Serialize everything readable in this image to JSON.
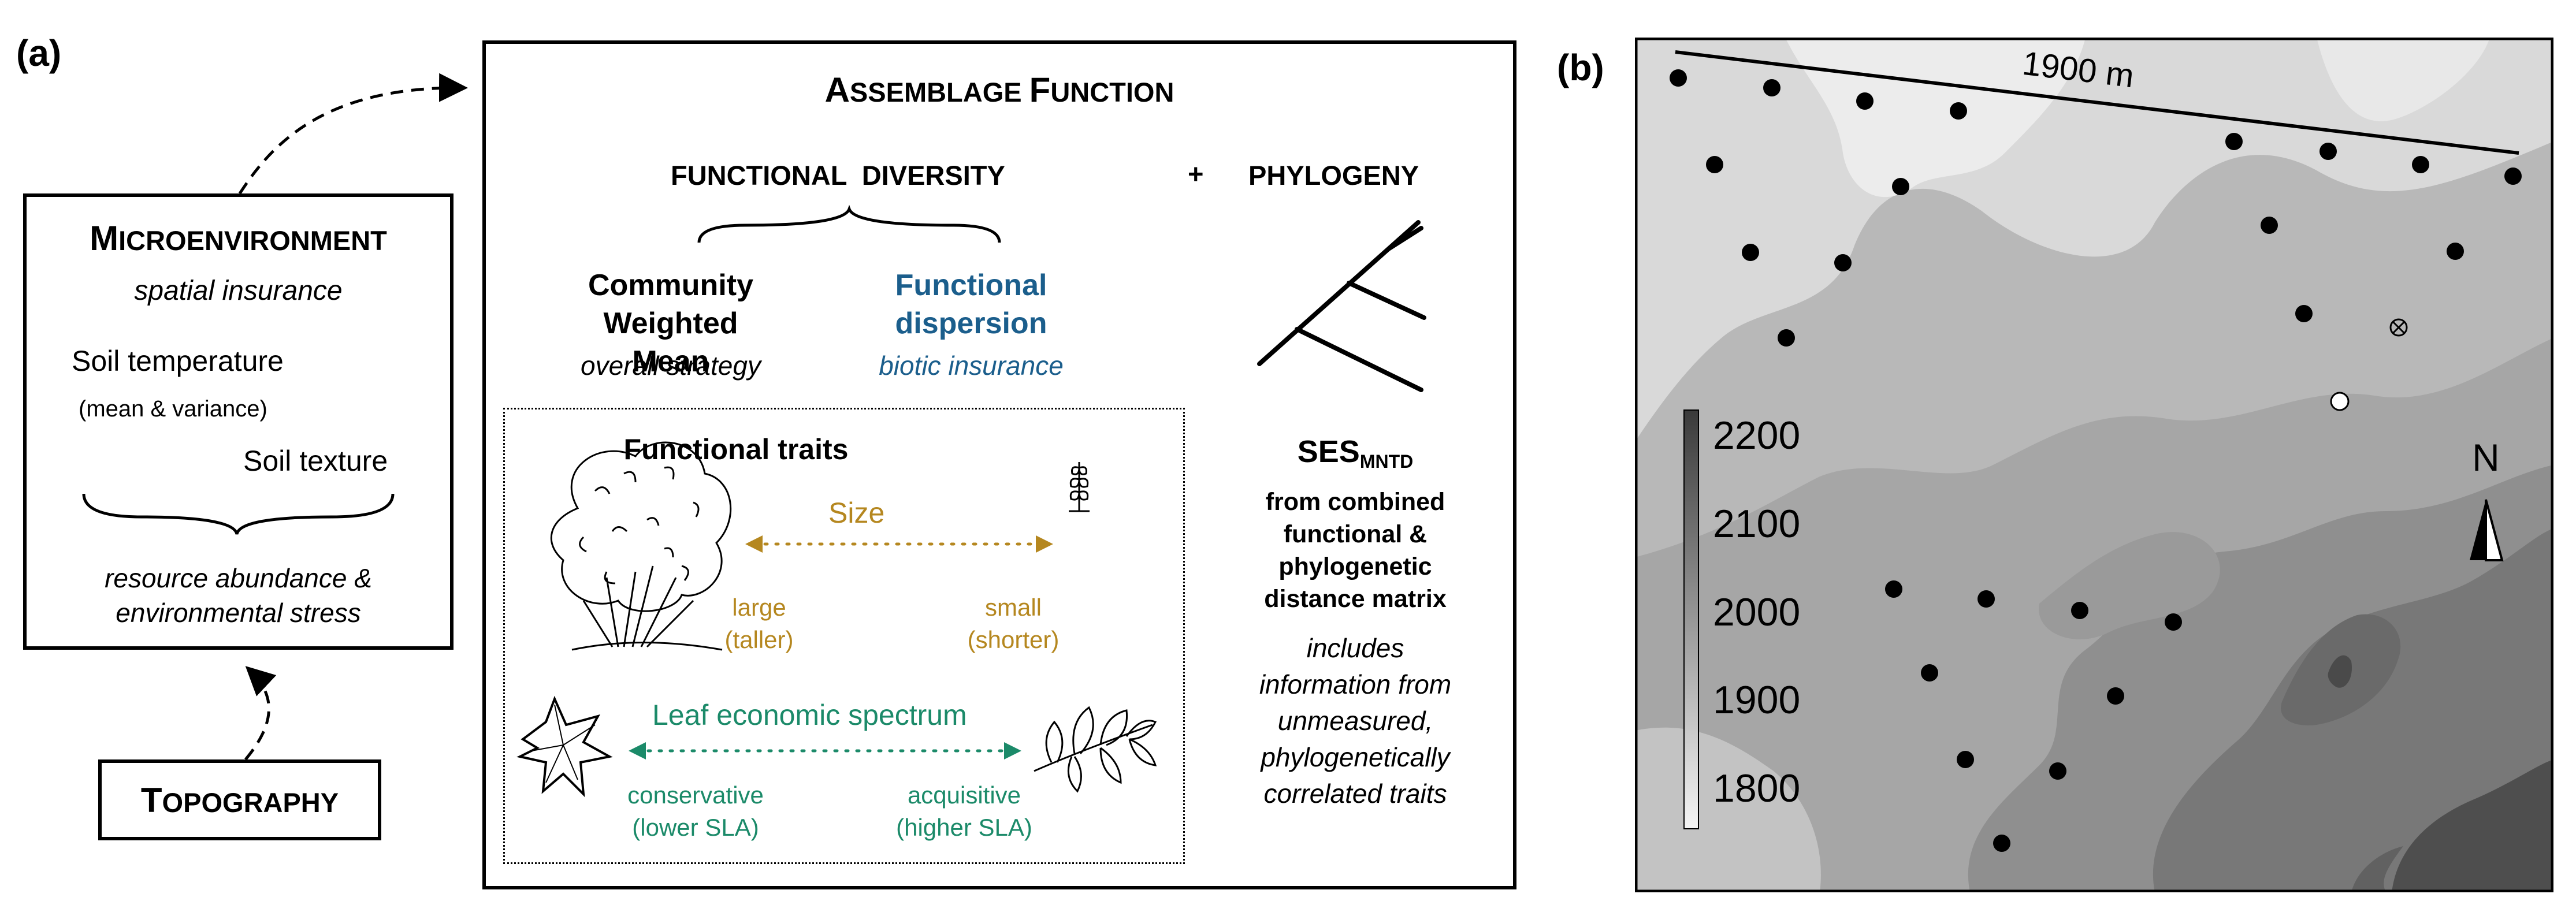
{
  "colors": {
    "size_gold": "#b5871f",
    "leaf_green": "#1b8a69",
    "dispersion_blue": "#1b5e8c"
  },
  "panel_a": {
    "label": "(a)",
    "microenvironment": {
      "title_first": "M",
      "title_rest": "ICROENVIRONMENT",
      "subtitle": "spatial insurance",
      "soil_temperature": "Soil temperature",
      "mean_variance": "(mean & variance)",
      "soil_texture": "Soil texture",
      "effect_line1": "resource abundance &",
      "effect_line2": "environmental stress"
    },
    "topography": {
      "title_first": "T",
      "title_rest": "OPOGRAPHY"
    },
    "assemblage": {
      "title_first_1": "A",
      "title_rest_1": "SSEMBLAGE ",
      "title_first_2": "F",
      "title_rest_2": "UNCTION",
      "functional_diversity": "FUNCTIONAL  DIVERSITY",
      "plus": "+",
      "phylogeny": "PHYLOGENY",
      "cwm_line1": "Community",
      "cwm_line2": "Weighted Mean",
      "cwm_sub": "overall strategy",
      "fd_line1": "Functional",
      "fd_line2": "dispersion",
      "fd_sub": "biotic insurance",
      "traits_title": "Functional traits",
      "size": "Size",
      "large": "large",
      "taller": "(taller)",
      "small": "small",
      "shorter": "(shorter)",
      "les": "Leaf economic spectrum",
      "conservative": "conservative",
      "lower_sla": "(lower SLA)",
      "acquisitive": "acquisitive",
      "higher_sla": "(higher SLA)",
      "ses": "SES",
      "ses_sub": "MNTD",
      "ses_line1": "from combined",
      "ses_line2": "functional &",
      "ses_line3": "phylogenetic",
      "ses_line4": "distance matrix",
      "info_line1": "includes",
      "info_line2": "information from",
      "info_line3": "unmeasured,",
      "info_line4": "phylogenetically",
      "info_line5": "correlated traits"
    }
  },
  "panel_b": {
    "label": "(b)",
    "scale_label": "1900 m",
    "north_label": "N",
    "elevation_ticks": [
      "2200",
      "2100",
      "2000",
      "1900",
      "1800"
    ]
  }
}
